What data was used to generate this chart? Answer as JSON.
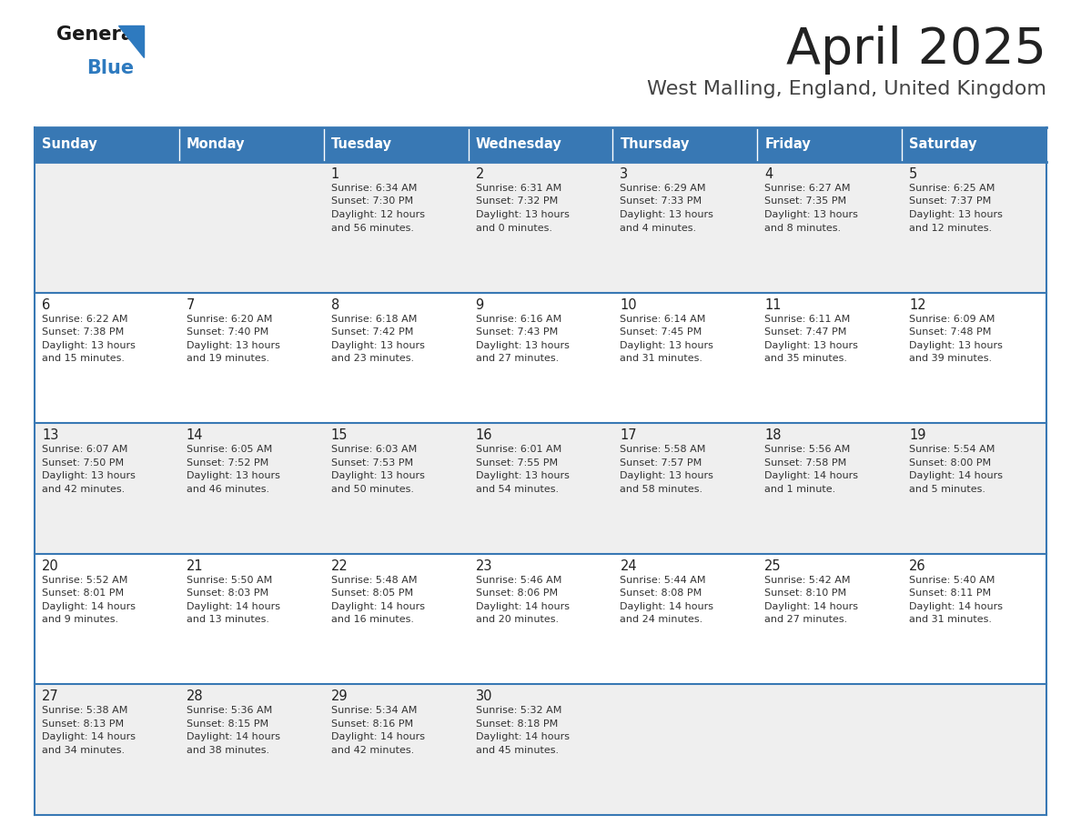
{
  "title": "April 2025",
  "subtitle": "West Malling, England, United Kingdom",
  "days_of_week": [
    "Sunday",
    "Monday",
    "Tuesday",
    "Wednesday",
    "Thursday",
    "Friday",
    "Saturday"
  ],
  "header_bg": "#3878b4",
  "header_text": "#ffffff",
  "row_bg_odd": "#efefef",
  "row_bg_even": "#ffffff",
  "border_color": "#3878b4",
  "text_color": "#333333",
  "day_number_color": "#222222",
  "title_color": "#222222",
  "subtitle_color": "#444444",
  "logo_text_color": "#1a1a1a",
  "logo_blue_color": "#2e7abf",
  "calendar_data": [
    [
      {
        "day": null,
        "info": null
      },
      {
        "day": null,
        "info": null
      },
      {
        "day": 1,
        "sunrise": "Sunrise: 6:34 AM",
        "sunset": "Sunset: 7:30 PM",
        "daylight1": "Daylight: 12 hours",
        "daylight2": "and 56 minutes."
      },
      {
        "day": 2,
        "sunrise": "Sunrise: 6:31 AM",
        "sunset": "Sunset: 7:32 PM",
        "daylight1": "Daylight: 13 hours",
        "daylight2": "and 0 minutes."
      },
      {
        "day": 3,
        "sunrise": "Sunrise: 6:29 AM",
        "sunset": "Sunset: 7:33 PM",
        "daylight1": "Daylight: 13 hours",
        "daylight2": "and 4 minutes."
      },
      {
        "day": 4,
        "sunrise": "Sunrise: 6:27 AM",
        "sunset": "Sunset: 7:35 PM",
        "daylight1": "Daylight: 13 hours",
        "daylight2": "and 8 minutes."
      },
      {
        "day": 5,
        "sunrise": "Sunrise: 6:25 AM",
        "sunset": "Sunset: 7:37 PM",
        "daylight1": "Daylight: 13 hours",
        "daylight2": "and 12 minutes."
      }
    ],
    [
      {
        "day": 6,
        "sunrise": "Sunrise: 6:22 AM",
        "sunset": "Sunset: 7:38 PM",
        "daylight1": "Daylight: 13 hours",
        "daylight2": "and 15 minutes."
      },
      {
        "day": 7,
        "sunrise": "Sunrise: 6:20 AM",
        "sunset": "Sunset: 7:40 PM",
        "daylight1": "Daylight: 13 hours",
        "daylight2": "and 19 minutes."
      },
      {
        "day": 8,
        "sunrise": "Sunrise: 6:18 AM",
        "sunset": "Sunset: 7:42 PM",
        "daylight1": "Daylight: 13 hours",
        "daylight2": "and 23 minutes."
      },
      {
        "day": 9,
        "sunrise": "Sunrise: 6:16 AM",
        "sunset": "Sunset: 7:43 PM",
        "daylight1": "Daylight: 13 hours",
        "daylight2": "and 27 minutes."
      },
      {
        "day": 10,
        "sunrise": "Sunrise: 6:14 AM",
        "sunset": "Sunset: 7:45 PM",
        "daylight1": "Daylight: 13 hours",
        "daylight2": "and 31 minutes."
      },
      {
        "day": 11,
        "sunrise": "Sunrise: 6:11 AM",
        "sunset": "Sunset: 7:47 PM",
        "daylight1": "Daylight: 13 hours",
        "daylight2": "and 35 minutes."
      },
      {
        "day": 12,
        "sunrise": "Sunrise: 6:09 AM",
        "sunset": "Sunset: 7:48 PM",
        "daylight1": "Daylight: 13 hours",
        "daylight2": "and 39 minutes."
      }
    ],
    [
      {
        "day": 13,
        "sunrise": "Sunrise: 6:07 AM",
        "sunset": "Sunset: 7:50 PM",
        "daylight1": "Daylight: 13 hours",
        "daylight2": "and 42 minutes."
      },
      {
        "day": 14,
        "sunrise": "Sunrise: 6:05 AM",
        "sunset": "Sunset: 7:52 PM",
        "daylight1": "Daylight: 13 hours",
        "daylight2": "and 46 minutes."
      },
      {
        "day": 15,
        "sunrise": "Sunrise: 6:03 AM",
        "sunset": "Sunset: 7:53 PM",
        "daylight1": "Daylight: 13 hours",
        "daylight2": "and 50 minutes."
      },
      {
        "day": 16,
        "sunrise": "Sunrise: 6:01 AM",
        "sunset": "Sunset: 7:55 PM",
        "daylight1": "Daylight: 13 hours",
        "daylight2": "and 54 minutes."
      },
      {
        "day": 17,
        "sunrise": "Sunrise: 5:58 AM",
        "sunset": "Sunset: 7:57 PM",
        "daylight1": "Daylight: 13 hours",
        "daylight2": "and 58 minutes."
      },
      {
        "day": 18,
        "sunrise": "Sunrise: 5:56 AM",
        "sunset": "Sunset: 7:58 PM",
        "daylight1": "Daylight: 14 hours",
        "daylight2": "and 1 minute."
      },
      {
        "day": 19,
        "sunrise": "Sunrise: 5:54 AM",
        "sunset": "Sunset: 8:00 PM",
        "daylight1": "Daylight: 14 hours",
        "daylight2": "and 5 minutes."
      }
    ],
    [
      {
        "day": 20,
        "sunrise": "Sunrise: 5:52 AM",
        "sunset": "Sunset: 8:01 PM",
        "daylight1": "Daylight: 14 hours",
        "daylight2": "and 9 minutes."
      },
      {
        "day": 21,
        "sunrise": "Sunrise: 5:50 AM",
        "sunset": "Sunset: 8:03 PM",
        "daylight1": "Daylight: 14 hours",
        "daylight2": "and 13 minutes."
      },
      {
        "day": 22,
        "sunrise": "Sunrise: 5:48 AM",
        "sunset": "Sunset: 8:05 PM",
        "daylight1": "Daylight: 14 hours",
        "daylight2": "and 16 minutes."
      },
      {
        "day": 23,
        "sunrise": "Sunrise: 5:46 AM",
        "sunset": "Sunset: 8:06 PM",
        "daylight1": "Daylight: 14 hours",
        "daylight2": "and 20 minutes."
      },
      {
        "day": 24,
        "sunrise": "Sunrise: 5:44 AM",
        "sunset": "Sunset: 8:08 PM",
        "daylight1": "Daylight: 14 hours",
        "daylight2": "and 24 minutes."
      },
      {
        "day": 25,
        "sunrise": "Sunrise: 5:42 AM",
        "sunset": "Sunset: 8:10 PM",
        "daylight1": "Daylight: 14 hours",
        "daylight2": "and 27 minutes."
      },
      {
        "day": 26,
        "sunrise": "Sunrise: 5:40 AM",
        "sunset": "Sunset: 8:11 PM",
        "daylight1": "Daylight: 14 hours",
        "daylight2": "and 31 minutes."
      }
    ],
    [
      {
        "day": 27,
        "sunrise": "Sunrise: 5:38 AM",
        "sunset": "Sunset: 8:13 PM",
        "daylight1": "Daylight: 14 hours",
        "daylight2": "and 34 minutes."
      },
      {
        "day": 28,
        "sunrise": "Sunrise: 5:36 AM",
        "sunset": "Sunset: 8:15 PM",
        "daylight1": "Daylight: 14 hours",
        "daylight2": "and 38 minutes."
      },
      {
        "day": 29,
        "sunrise": "Sunrise: 5:34 AM",
        "sunset": "Sunset: 8:16 PM",
        "daylight1": "Daylight: 14 hours",
        "daylight2": "and 42 minutes."
      },
      {
        "day": 30,
        "sunrise": "Sunrise: 5:32 AM",
        "sunset": "Sunset: 8:18 PM",
        "daylight1": "Daylight: 14 hours",
        "daylight2": "and 45 minutes."
      },
      {
        "day": null,
        "info": null
      },
      {
        "day": null,
        "info": null
      },
      {
        "day": null,
        "info": null
      }
    ]
  ]
}
